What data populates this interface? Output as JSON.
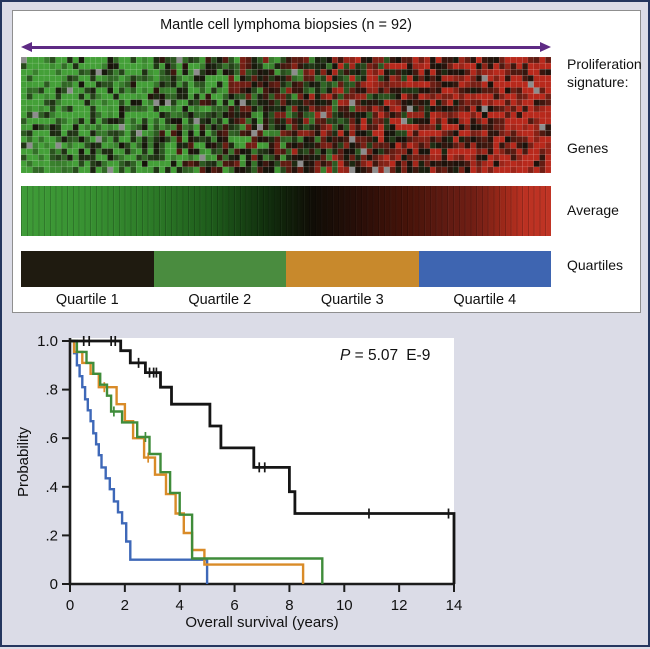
{
  "figure": {
    "background": "#dbdce7",
    "border_color": "#24365f",
    "panel_background": "#ffffff"
  },
  "top_panel": {
    "title": "Mantle cell lymphoma biopsies (n = 92)",
    "arrow_color": "#5e2a84",
    "side_labels": {
      "proliferation_signature": "Proliferation signature:",
      "genes": "Genes",
      "average": "Average",
      "quartiles": "Quartiles"
    },
    "heatmap": {
      "columns": 92,
      "rows": 19,
      "green": "#44a038",
      "black": "#15110a",
      "red": "#b8291c",
      "missing": "#8d8d8d",
      "seed": 7
    },
    "average_bar": {
      "gradient": [
        [
          "#3f9c38",
          0
        ],
        [
          "#389232",
          12
        ],
        [
          "#2d7c28",
          24
        ],
        [
          "#1e5c1b",
          36
        ],
        [
          "#102c0c",
          47
        ],
        [
          "#100d06",
          55
        ],
        [
          "#2a0e08",
          64
        ],
        [
          "#471309",
          73
        ],
        [
          "#5f1a11",
          80
        ],
        [
          "#741f15",
          86
        ],
        [
          "#9c2819",
          91
        ],
        [
          "#bb3122",
          95
        ],
        [
          "#c03424",
          100
        ]
      ]
    },
    "quartile_bar": {
      "segments": [
        {
          "label": "Quartile 1",
          "color": "#1f1b10"
        },
        {
          "label": "Quartile 2",
          "color": "#4a8c3f"
        },
        {
          "label": "Quartile 3",
          "color": "#c8892c"
        },
        {
          "label": "Quartile 4",
          "color": "#3e65b1"
        }
      ]
    }
  },
  "chart_data": {
    "type": "line",
    "subtype": "kaplan-meier-step",
    "title": "",
    "xlabel": "Overall survival (years)",
    "ylabel": "Probability",
    "xlim": [
      0,
      14
    ],
    "ylim": [
      0,
      1.0
    ],
    "xticks": [
      0,
      2,
      4,
      6,
      8,
      10,
      12,
      14
    ],
    "ytick_values": [
      1.0,
      0.8,
      0.6,
      0.4,
      0.2,
      0
    ],
    "ytick_labels": [
      "1.0",
      ".8",
      ".6",
      ".4",
      ".2",
      "0"
    ],
    "grid": false,
    "legend": "none",
    "annotation": {
      "italic": "P",
      "mid": " = 5.07",
      "tail": "E-9"
    },
    "series": [
      {
        "name": "Quartile 4",
        "color": "#3e68b8",
        "points": [
          [
            0,
            1.0
          ],
          [
            0.15,
            0.95
          ],
          [
            0.25,
            0.9
          ],
          [
            0.35,
            0.855
          ],
          [
            0.45,
            0.81
          ],
          [
            0.55,
            0.76
          ],
          [
            0.65,
            0.715
          ],
          [
            0.75,
            0.67
          ],
          [
            0.85,
            0.62
          ],
          [
            0.95,
            0.575
          ],
          [
            1.05,
            0.53
          ],
          [
            1.15,
            0.48
          ],
          [
            1.3,
            0.435
          ],
          [
            1.45,
            0.39
          ],
          [
            1.6,
            0.34
          ],
          [
            1.75,
            0.295
          ],
          [
            1.9,
            0.25
          ],
          [
            2.05,
            0.175
          ],
          [
            2.2,
            0.1
          ],
          [
            5.0,
            0
          ]
        ],
        "censors": []
      },
      {
        "name": "Quartile 3",
        "color": "#d98b28",
        "points": [
          [
            0,
            1.0
          ],
          [
            0.15,
            0.955
          ],
          [
            0.45,
            0.91
          ],
          [
            0.75,
            0.865
          ],
          [
            1.05,
            0.81
          ],
          [
            1.7,
            0.74
          ],
          [
            2.0,
            0.67
          ],
          [
            2.3,
            0.6
          ],
          [
            2.7,
            0.52
          ],
          [
            3.1,
            0.45
          ],
          [
            3.5,
            0.37
          ],
          [
            3.85,
            0.29
          ],
          [
            4.15,
            0.21
          ],
          [
            4.45,
            0.14
          ],
          [
            4.9,
            0.08
          ],
          [
            8.5,
            0
          ]
        ],
        "censors": [
          [
            1.25,
            0.81
          ],
          [
            2.85,
            0.52
          ]
        ]
      },
      {
        "name": "Quartile 2",
        "color": "#3f8c3a",
        "points": [
          [
            0,
            1.0
          ],
          [
            0.25,
            0.955
          ],
          [
            0.6,
            0.91
          ],
          [
            0.85,
            0.865
          ],
          [
            1.1,
            0.82
          ],
          [
            1.35,
            0.775
          ],
          [
            1.5,
            0.71
          ],
          [
            1.9,
            0.665
          ],
          [
            2.45,
            0.605
          ],
          [
            2.9,
            0.535
          ],
          [
            3.3,
            0.46
          ],
          [
            3.65,
            0.375
          ],
          [
            4.0,
            0.285
          ],
          [
            4.45,
            0.105
          ],
          [
            9.2,
            0
          ]
        ],
        "censors": [
          [
            1.6,
            0.71
          ],
          [
            2.75,
            0.605
          ]
        ]
      },
      {
        "name": "Quartile 1",
        "color": "#151515",
        "points": [
          [
            0,
            1.0
          ],
          [
            1.85,
            0.96
          ],
          [
            2.2,
            0.91
          ],
          [
            2.75,
            0.87
          ],
          [
            3.3,
            0.81
          ],
          [
            3.7,
            0.74
          ],
          [
            5.1,
            0.65
          ],
          [
            5.5,
            0.56
          ],
          [
            6.7,
            0.48
          ],
          [
            8.0,
            0.38
          ],
          [
            8.2,
            0.29
          ],
          [
            14,
            0
          ]
        ],
        "censors": [
          [
            0.5,
            1.0
          ],
          [
            0.7,
            1.0
          ],
          [
            1.5,
            1.0
          ],
          [
            1.65,
            1.0
          ],
          [
            2.5,
            0.91
          ],
          [
            2.9,
            0.87
          ],
          [
            3.05,
            0.87
          ],
          [
            3.15,
            0.87
          ],
          [
            6.9,
            0.48
          ],
          [
            7.1,
            0.48
          ],
          [
            10.9,
            0.29
          ],
          [
            13.8,
            0.29
          ]
        ]
      }
    ]
  }
}
